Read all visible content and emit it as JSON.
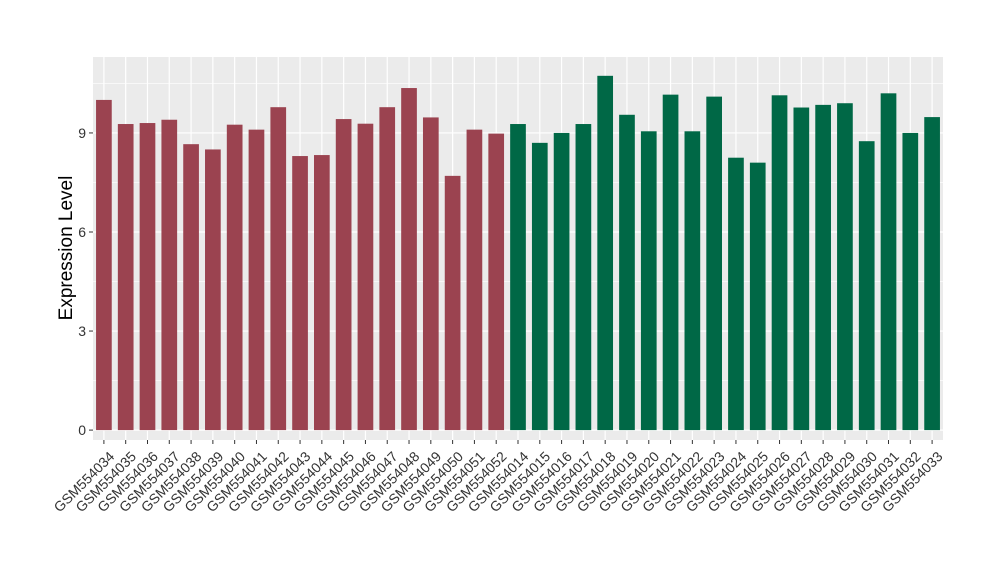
{
  "chart_data": {
    "type": "bar",
    "title": "",
    "xlabel": "",
    "ylabel": "Expression Level",
    "ylim": [
      -0.3,
      11.3
    ],
    "yticks": [
      0,
      3,
      6,
      9
    ],
    "grid": true,
    "legend": "none",
    "colors": {
      "group1": "#9b4350",
      "group2": "#006846",
      "panel": "#ebebeb",
      "grid": "#ffffff"
    },
    "categories": [
      "GSM554034",
      "GSM554035",
      "GSM554036",
      "GSM554037",
      "GSM554038",
      "GSM554039",
      "GSM554040",
      "GSM554041",
      "GSM554042",
      "GSM554043",
      "GSM554044",
      "GSM554045",
      "GSM554046",
      "GSM554047",
      "GSM554048",
      "GSM554049",
      "GSM554050",
      "GSM554051",
      "GSM554052",
      "GSM554014",
      "GSM554015",
      "GSM554016",
      "GSM554017",
      "GSM554018",
      "GSM554019",
      "GSM554020",
      "GSM554021",
      "GSM554022",
      "GSM554023",
      "GSM554024",
      "GSM554025",
      "GSM554026",
      "GSM554027",
      "GSM554028",
      "GSM554029",
      "GSM554030",
      "GSM554031",
      "GSM554032",
      "GSM554033"
    ],
    "values": [
      10.0,
      9.27,
      9.3,
      9.4,
      8.66,
      8.5,
      9.25,
      9.1,
      9.78,
      8.3,
      8.33,
      9.42,
      9.28,
      9.78,
      10.36,
      9.47,
      7.7,
      9.1,
      8.98,
      9.27,
      8.7,
      9.0,
      9.27,
      10.73,
      9.55,
      9.05,
      10.16,
      9.05,
      10.1,
      8.25,
      8.1,
      10.14,
      9.77,
      9.85,
      9.9,
      8.75,
      10.2,
      9.0,
      9.48
    ],
    "groups": [
      1,
      1,
      1,
      1,
      1,
      1,
      1,
      1,
      1,
      1,
      1,
      1,
      1,
      1,
      1,
      1,
      1,
      1,
      1,
      2,
      2,
      2,
      2,
      2,
      2,
      2,
      2,
      2,
      2,
      2,
      2,
      2,
      2,
      2,
      2,
      2,
      2,
      2,
      2
    ]
  }
}
